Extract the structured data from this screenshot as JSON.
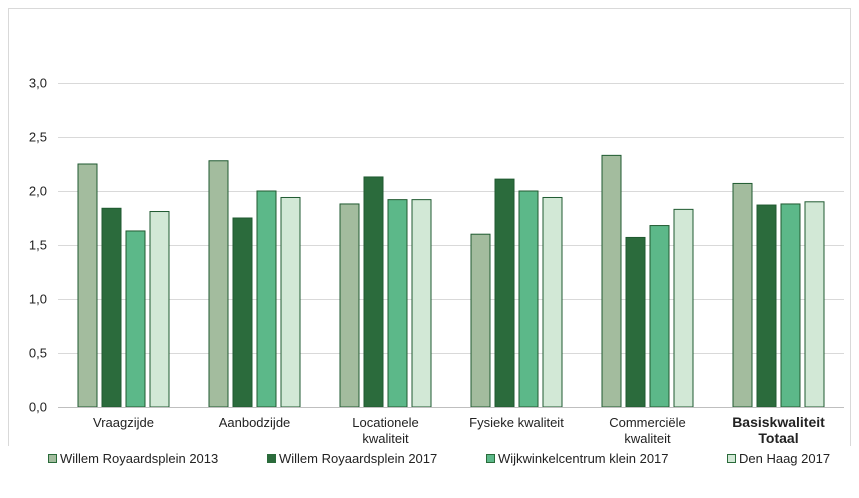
{
  "chart_data": {
    "type": "bar",
    "categories": [
      {
        "label": "Vraagzijde",
        "bold": false
      },
      {
        "label": "Aanbodzijde",
        "bold": false
      },
      {
        "label": "Locationele kwaliteit",
        "bold": false
      },
      {
        "label": "Fysieke kwaliteit",
        "bold": false
      },
      {
        "label": "Commerciële kwaliteit",
        "bold": false
      },
      {
        "label": "Basiskwaliteit Totaal",
        "bold": true
      }
    ],
    "series": [
      {
        "name": "Willem Royaardsplein 2013",
        "color": "#a3bc9e",
        "values": [
          2.25,
          2.28,
          1.88,
          1.6,
          2.33,
          2.07
        ]
      },
      {
        "name": "Willem Royaardsplein 2017",
        "color": "#2b6b3c",
        "values": [
          1.84,
          1.75,
          2.13,
          2.11,
          1.57,
          1.87
        ]
      },
      {
        "name": "Wijkwinkelcentrum klein 2017",
        "color": "#5cb889",
        "values": [
          1.63,
          2.0,
          1.92,
          2.0,
          1.68,
          1.88
        ]
      },
      {
        "name": "Den Haag 2017",
        "color": "#d2e8d6",
        "values": [
          1.81,
          1.94,
          1.92,
          1.94,
          1.83,
          1.9
        ]
      }
    ],
    "yticks": [
      "0,0",
      "0,5",
      "1,0",
      "1,5",
      "2,0",
      "2,5",
      "3,0"
    ],
    "ylim": [
      0,
      3.0
    ],
    "grid": true,
    "legend_position": "bottom",
    "title": "",
    "xlabel": "",
    "ylabel": ""
  }
}
